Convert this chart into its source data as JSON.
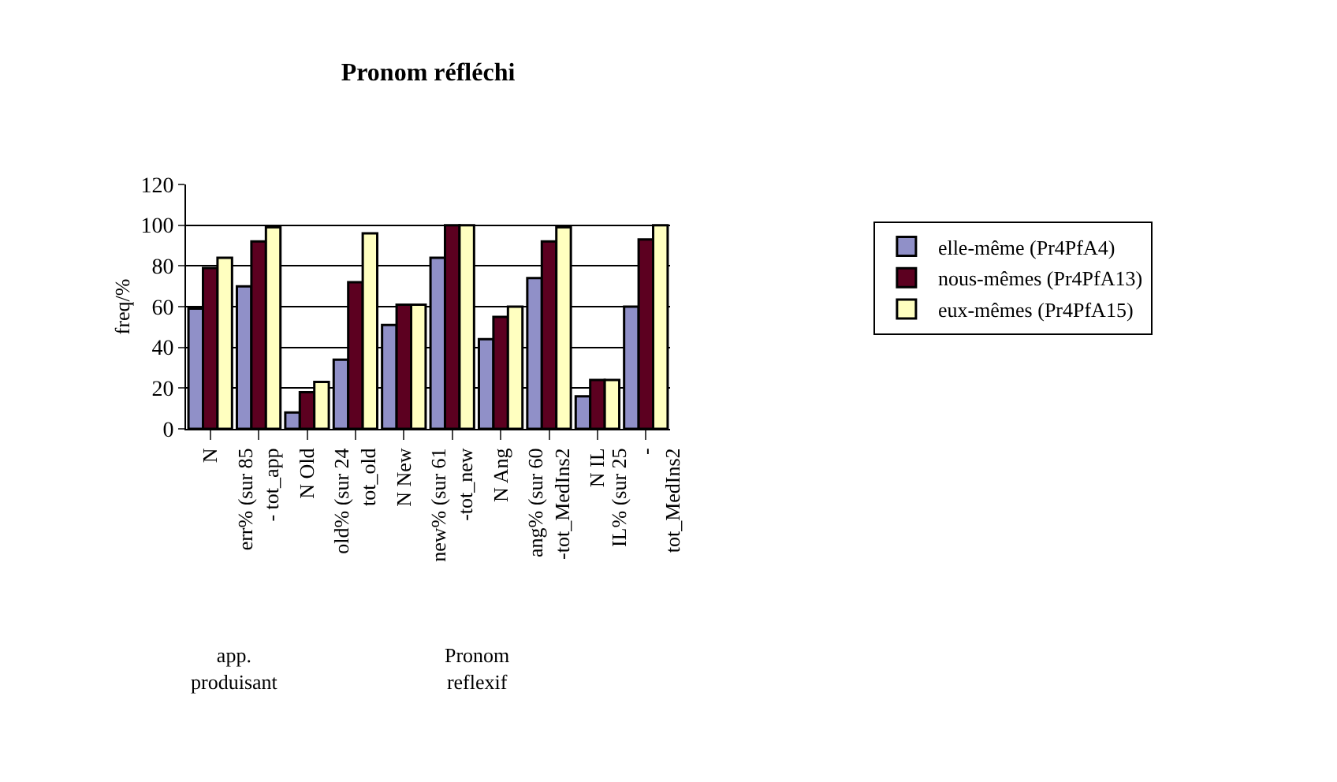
{
  "chart_data": {
    "type": "bar",
    "title": "Pronom réfléchi",
    "ylabel": "freq/%",
    "categories": [
      "N",
      "err% (sur 85 - tot_app",
      "N Old",
      "old% (sur 24 tot_old",
      "N New",
      "new% (sur 61 -tot_new",
      "N Ang",
      "ang% (sur 60 -tot_MedIns2",
      "N IL",
      "IL% (sur 25 - tot_MedIns2"
    ],
    "series": [
      {
        "name": "elle-même (Pr4PfA4)",
        "color": "#9090c8",
        "values": [
          59,
          70,
          8,
          34,
          51,
          84,
          44,
          74,
          16,
          60
        ]
      },
      {
        "name": "nous-mêmes (Pr4PfA13)",
        "color": "#5c0020",
        "values": [
          79,
          92,
          18,
          72,
          61,
          100,
          55,
          92,
          24,
          93
        ]
      },
      {
        "name": "eux-mêmes (Pr4PfA15)",
        "color": "#ffffc0",
        "values": [
          84,
          99,
          23,
          96,
          61,
          100,
          60,
          99,
          24,
          100
        ]
      }
    ],
    "ylim": [
      0,
      120
    ],
    "yticks": [
      0,
      20,
      40,
      60,
      80,
      100,
      120
    ],
    "grid": "y",
    "legend": "right",
    "annotations": [
      "app. produisant",
      "Pronom reflexif"
    ]
  }
}
